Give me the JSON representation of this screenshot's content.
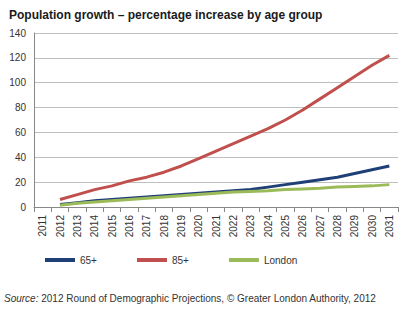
{
  "chart_data": {
    "type": "line",
    "title": "Population growth – percentage increase by age group",
    "annotation": "Source: 2012 Round of Demographic Projections, © Greater London Authority, 2012",
    "categories": [
      "2011",
      "2012",
      "2013",
      "2014",
      "2015",
      "2016",
      "2017",
      "2018",
      "2019",
      "2020",
      "2021",
      "2022",
      "2023",
      "2024",
      "2025",
      "2026",
      "2027",
      "2028",
      "2029",
      "2030",
      "2031"
    ],
    "series": [
      {
        "name": "65+",
        "color": "#1f3f77",
        "values": [
          null,
          2,
          3.5,
          5,
          6,
          7,
          8,
          9,
          10,
          11,
          12,
          13,
          14,
          16,
          18,
          20,
          22,
          24,
          27,
          30,
          33
        ]
      },
      {
        "name": "85+",
        "color": "#c0504d",
        "values": [
          null,
          6,
          10,
          14,
          17,
          21,
          24,
          28,
          33,
          39,
          45,
          51,
          57,
          63,
          70,
          78,
          87,
          96,
          105,
          114,
          122
        ]
      },
      {
        "name": "London",
        "color": "#9bbb59",
        "values": [
          null,
          1.5,
          3,
          4,
          5,
          6,
          7,
          8,
          9,
          10,
          11,
          12,
          12.5,
          13,
          14,
          14.5,
          15,
          16,
          16.5,
          17,
          18
        ]
      }
    ],
    "ylim": [
      0,
      140
    ],
    "yticks": [
      0,
      20,
      40,
      60,
      80,
      100,
      120,
      140
    ],
    "grid": true,
    "legend": "bottom"
  }
}
